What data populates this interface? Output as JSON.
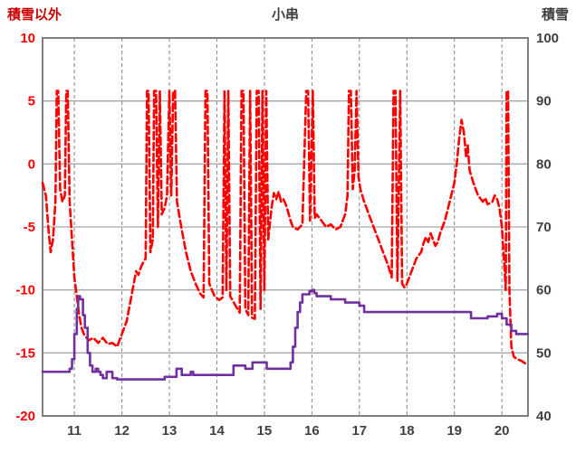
{
  "chart_data": {
    "type": "line",
    "title": "小串",
    "colors": {
      "frame": "#808080",
      "grid": "#a6a6a6",
      "grid_dashed": "#8f8f8f",
      "text": "#3f3f3f",
      "background": "#ffffff"
    },
    "left_axis": {
      "label": "積雪以外",
      "label_color": "#cc0000",
      "color": "#ff0000",
      "min": -20,
      "max": 10,
      "ticks": [
        10,
        5,
        0,
        -5,
        -10,
        -15,
        -20
      ]
    },
    "right_axis": {
      "label": "積雪",
      "label_color": "#3f3f3f",
      "color": "#404040",
      "min": 40,
      "max": 100,
      "ticks": [
        100,
        90,
        80,
        70,
        60,
        50,
        40
      ]
    },
    "x_axis": {
      "min": 10.33,
      "max": 20.55,
      "color": "#404040",
      "ticks": [
        11,
        12,
        13,
        14,
        15,
        16,
        17,
        18,
        19,
        20
      ]
    },
    "grid": {
      "horizontal": "solid",
      "vertical": "dashed"
    },
    "legend": "none",
    "series": [
      {
        "name": "積雪以外",
        "axis": "left",
        "color": "#ff0000",
        "style": "dashed",
        "width": 2.6,
        "step": false,
        "points": [
          [
            10.33,
            -1.5
          ],
          [
            10.4,
            -2.5
          ],
          [
            10.45,
            -5
          ],
          [
            10.5,
            -7
          ],
          [
            10.55,
            -6
          ],
          [
            10.6,
            -3
          ],
          [
            10.63,
            5.8
          ],
          [
            10.66,
            5.8
          ],
          [
            10.7,
            -2
          ],
          [
            10.75,
            -3
          ],
          [
            10.8,
            -2.5
          ],
          [
            10.83,
            5.8
          ],
          [
            10.86,
            5.8
          ],
          [
            10.9,
            -3
          ],
          [
            10.95,
            -6
          ],
          [
            11.0,
            -9
          ],
          [
            11.05,
            -10.5
          ],
          [
            11.1,
            -12
          ],
          [
            11.15,
            -13
          ],
          [
            11.2,
            -13.5
          ],
          [
            11.3,
            -14
          ],
          [
            11.4,
            -13.8
          ],
          [
            11.5,
            -14.2
          ],
          [
            11.6,
            -13.8
          ],
          [
            11.7,
            -14.3
          ],
          [
            11.8,
            -14.2
          ],
          [
            11.9,
            -14.5
          ],
          [
            12.0,
            -13.5
          ],
          [
            12.1,
            -12.5
          ],
          [
            12.2,
            -10.5
          ],
          [
            12.3,
            -8.5
          ],
          [
            12.35,
            -8.8
          ],
          [
            12.4,
            -8.2
          ],
          [
            12.45,
            -7.8
          ],
          [
            12.5,
            -7.5
          ],
          [
            12.53,
            5.8
          ],
          [
            12.56,
            5.8
          ],
          [
            12.6,
            -7
          ],
          [
            12.65,
            -6
          ],
          [
            12.68,
            5.8
          ],
          [
            12.72,
            5.8
          ],
          [
            12.76,
            -5
          ],
          [
            12.8,
            5.8
          ],
          [
            12.84,
            -4
          ],
          [
            12.9,
            -3.5
          ],
          [
            12.95,
            -2.5
          ],
          [
            13.0,
            5.8
          ],
          [
            13.04,
            -2.5
          ],
          [
            13.08,
            5.8
          ],
          [
            13.12,
            5.8
          ],
          [
            13.16,
            -3
          ],
          [
            13.25,
            -5
          ],
          [
            13.35,
            -7
          ],
          [
            13.45,
            -8.5
          ],
          [
            13.55,
            -9.5
          ],
          [
            13.65,
            -10.3
          ],
          [
            13.72,
            -10.6
          ],
          [
            13.76,
            5.8
          ],
          [
            13.8,
            5.8
          ],
          [
            13.84,
            -9.5
          ],
          [
            13.95,
            -10.5
          ],
          [
            14.05,
            -10.8
          ],
          [
            14.12,
            -10.6
          ],
          [
            14.16,
            5.8
          ],
          [
            14.2,
            -10
          ],
          [
            14.24,
            5.8
          ],
          [
            14.28,
            -10.5
          ],
          [
            14.4,
            -11.3
          ],
          [
            14.48,
            -11.8
          ],
          [
            14.52,
            5.8
          ],
          [
            14.56,
            5.8
          ],
          [
            14.6,
            -11.5
          ],
          [
            14.66,
            -12
          ],
          [
            14.7,
            5.8
          ],
          [
            14.74,
            -12.2
          ],
          [
            14.8,
            -12.3
          ],
          [
            14.84,
            5.8
          ],
          [
            14.88,
            5.8
          ],
          [
            14.92,
            -11.5
          ],
          [
            14.96,
            5.8
          ],
          [
            15.0,
            -10
          ],
          [
            15.04,
            5.8
          ],
          [
            15.08,
            -6
          ],
          [
            15.15,
            -3.5
          ],
          [
            15.2,
            -2.3
          ],
          [
            15.25,
            -2.8
          ],
          [
            15.3,
            -2.2
          ],
          [
            15.35,
            -3
          ],
          [
            15.4,
            -2.8
          ],
          [
            15.45,
            -3.2
          ],
          [
            15.5,
            -3.8
          ],
          [
            15.55,
            -4.5
          ],
          [
            15.6,
            -5
          ],
          [
            15.7,
            -5.2
          ],
          [
            15.8,
            -4.8
          ],
          [
            15.88,
            5.8
          ],
          [
            15.92,
            5.8
          ],
          [
            15.96,
            -4.5
          ],
          [
            16.02,
            5.8
          ],
          [
            16.06,
            -4.3
          ],
          [
            16.1,
            -4
          ],
          [
            16.2,
            -4.5
          ],
          [
            16.3,
            -5
          ],
          [
            16.4,
            -4.8
          ],
          [
            16.5,
            -5.2
          ],
          [
            16.6,
            -5
          ],
          [
            16.7,
            -4
          ],
          [
            16.75,
            -2.5
          ],
          [
            16.78,
            5.8
          ],
          [
            16.82,
            5.8
          ],
          [
            16.86,
            -2
          ],
          [
            16.9,
            -0.5
          ],
          [
            16.94,
            5.8
          ],
          [
            16.98,
            -1
          ],
          [
            17.02,
            -2
          ],
          [
            17.1,
            -3
          ],
          [
            17.2,
            -4
          ],
          [
            17.3,
            -5
          ],
          [
            17.4,
            -6
          ],
          [
            17.5,
            -7
          ],
          [
            17.6,
            -8
          ],
          [
            17.68,
            -9
          ],
          [
            17.72,
            5.8
          ],
          [
            17.76,
            5.8
          ],
          [
            17.8,
            -9.3
          ],
          [
            17.86,
            5.8
          ],
          [
            17.9,
            -9.5
          ],
          [
            17.95,
            -9.8
          ],
          [
            18.0,
            -9.5
          ],
          [
            18.1,
            -8.5
          ],
          [
            18.2,
            -7.5
          ],
          [
            18.3,
            -7
          ],
          [
            18.35,
            -6.3
          ],
          [
            18.4,
            -5.8
          ],
          [
            18.45,
            -6.2
          ],
          [
            18.5,
            -5.5
          ],
          [
            18.55,
            -6
          ],
          [
            18.6,
            -6.5
          ],
          [
            18.65,
            -6.2
          ],
          [
            18.7,
            -5.5
          ],
          [
            18.8,
            -4.5
          ],
          [
            18.9,
            -3
          ],
          [
            19.0,
            -1.5
          ],
          [
            19.05,
            0
          ],
          [
            19.1,
            2
          ],
          [
            19.15,
            3.5
          ],
          [
            19.2,
            2.5
          ],
          [
            19.25,
            0.5
          ],
          [
            19.28,
            1.5
          ],
          [
            19.32,
            -0.5
          ],
          [
            19.4,
            -1.5
          ],
          [
            19.5,
            -2.5
          ],
          [
            19.6,
            -3
          ],
          [
            19.65,
            -2.7
          ],
          [
            19.7,
            -3.2
          ],
          [
            19.8,
            -3
          ],
          [
            19.85,
            -2.5
          ],
          [
            19.9,
            -2.8
          ],
          [
            19.95,
            -3.5
          ],
          [
            20.0,
            -5
          ],
          [
            20.05,
            -8
          ],
          [
            20.08,
            -10
          ],
          [
            20.1,
            5.8
          ],
          [
            20.13,
            5.8
          ],
          [
            20.16,
            -10
          ],
          [
            20.2,
            -14.5
          ],
          [
            20.25,
            -15.3
          ],
          [
            20.32,
            -15.5
          ],
          [
            20.4,
            -15.6
          ],
          [
            20.48,
            -15.8
          ],
          [
            20.54,
            -16
          ]
        ]
      },
      {
        "name": "積雪",
        "axis": "right",
        "color": "#7030a0",
        "style": "solid",
        "width": 2.6,
        "step": true,
        "points": [
          [
            10.33,
            47
          ],
          [
            10.6,
            47
          ],
          [
            10.85,
            47
          ],
          [
            10.9,
            47.5
          ],
          [
            10.95,
            49
          ],
          [
            11.0,
            53
          ],
          [
            11.05,
            57
          ],
          [
            11.08,
            59
          ],
          [
            11.12,
            58.5
          ],
          [
            11.18,
            56
          ],
          [
            11.22,
            54
          ],
          [
            11.28,
            50
          ],
          [
            11.33,
            48
          ],
          [
            11.38,
            47
          ],
          [
            11.45,
            47.5
          ],
          [
            11.5,
            47
          ],
          [
            11.55,
            46.5
          ],
          [
            11.6,
            46
          ],
          [
            11.68,
            47
          ],
          [
            11.75,
            47
          ],
          [
            11.8,
            46
          ],
          [
            11.9,
            45.8
          ],
          [
            12.2,
            45.8
          ],
          [
            12.6,
            45.8
          ],
          [
            12.8,
            45.8
          ],
          [
            12.9,
            46.2
          ],
          [
            13.1,
            46.2
          ],
          [
            13.15,
            47.5
          ],
          [
            13.22,
            47.5
          ],
          [
            13.26,
            46.5
          ],
          [
            13.4,
            46.5
          ],
          [
            13.45,
            47
          ],
          [
            13.5,
            46.5
          ],
          [
            13.8,
            46.5
          ],
          [
            14.1,
            46.5
          ],
          [
            14.3,
            46.5
          ],
          [
            14.35,
            48
          ],
          [
            14.55,
            48
          ],
          [
            14.6,
            47.5
          ],
          [
            14.7,
            47.5
          ],
          [
            14.75,
            48.5
          ],
          [
            15.0,
            48.5
          ],
          [
            15.05,
            47.5
          ],
          [
            15.3,
            47.5
          ],
          [
            15.5,
            47.5
          ],
          [
            15.55,
            48.5
          ],
          [
            15.6,
            51
          ],
          [
            15.65,
            54
          ],
          [
            15.7,
            56.5
          ],
          [
            15.75,
            58
          ],
          [
            15.8,
            59.3
          ],
          [
            15.9,
            59.3
          ],
          [
            15.95,
            59.8
          ],
          [
            16.0,
            60
          ],
          [
            16.05,
            59.5
          ],
          [
            16.1,
            59
          ],
          [
            16.3,
            59
          ],
          [
            16.4,
            58.5
          ],
          [
            16.6,
            58.5
          ],
          [
            16.7,
            58
          ],
          [
            16.9,
            58
          ],
          [
            17.0,
            57.5
          ],
          [
            17.1,
            56.5
          ],
          [
            17.5,
            56.5
          ],
          [
            18.0,
            56.5
          ],
          [
            18.5,
            56.5
          ],
          [
            19.0,
            56.5
          ],
          [
            19.3,
            56.5
          ],
          [
            19.35,
            55.5
          ],
          [
            19.6,
            55.5
          ],
          [
            19.7,
            55.8
          ],
          [
            19.9,
            56.2
          ],
          [
            20.0,
            55.5
          ],
          [
            20.05,
            55.5
          ],
          [
            20.1,
            54.5
          ],
          [
            20.2,
            53.5
          ],
          [
            20.3,
            53
          ],
          [
            20.54,
            53
          ]
        ]
      }
    ]
  }
}
